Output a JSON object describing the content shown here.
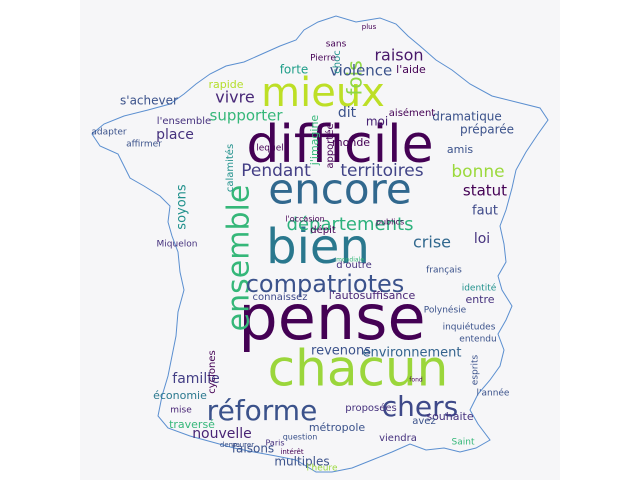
{
  "colors": {
    "background": "#ffffff",
    "panel": "#f6f6f8",
    "outline": "#5b8fd0",
    "palette": [
      "#440154",
      "#3b528b",
      "#21918c",
      "#5ec962",
      "#9bd63b",
      "#c8e020"
    ]
  },
  "words": [
    {
      "text": "pense",
      "color": "#440154"
    },
    {
      "text": "difficile",
      "color": "#440154"
    },
    {
      "text": "chacun",
      "color": "#9bd63b"
    },
    {
      "text": "bien",
      "color": "#2a788e"
    },
    {
      "text": "encore",
      "color": "#31688e"
    },
    {
      "text": "mieux",
      "color": "#bddf26"
    },
    {
      "text": "ensemble",
      "color": "#35b779"
    },
    {
      "text": "réforme",
      "color": "#3b528b"
    },
    {
      "text": "chers",
      "color": "#3e4989"
    },
    {
      "text": "compatriotes",
      "color": "#3b528b"
    },
    {
      "text": "départements",
      "color": "#2db27d"
    },
    {
      "text": "territoires",
      "color": "#414487"
    },
    {
      "text": "Pendant",
      "color": "#433e85"
    },
    {
      "text": "fois",
      "color": "#8fd744"
    },
    {
      "text": "raison",
      "color": "#48186a"
    },
    {
      "text": "violence",
      "color": "#3b528b"
    },
    {
      "text": "bonne",
      "color": "#9bd93c"
    },
    {
      "text": "crise",
      "color": "#31688e"
    },
    {
      "text": "vivre",
      "color": "#482878"
    },
    {
      "text": "supporter",
      "color": "#35b779"
    },
    {
      "text": "famille",
      "color": "#433e85"
    },
    {
      "text": "nouvelle",
      "color": "#482475"
    },
    {
      "text": "environnement",
      "color": "#33638d"
    },
    {
      "text": "revenons",
      "color": "#3b528b"
    },
    {
      "text": "statut",
      "color": "#440154"
    },
    {
      "text": "faut",
      "color": "#3e4989"
    },
    {
      "text": "loi",
      "color": "#46327e"
    },
    {
      "text": "dit",
      "color": "#3b528b"
    },
    {
      "text": "moi",
      "color": "#482475"
    },
    {
      "text": "place",
      "color": "#46327e"
    },
    {
      "text": "soyons",
      "color": "#21918c"
    },
    {
      "text": "s'achever",
      "color": "#3b528b"
    },
    {
      "text": "forte",
      "color": "#1f9e89"
    },
    {
      "text": "l'aide",
      "color": "#440154"
    },
    {
      "text": "choc",
      "color": "#21918c"
    },
    {
      "text": "rapide",
      "color": "#b5de2b"
    },
    {
      "text": "connaissez",
      "color": "#3e4989"
    },
    {
      "text": "l'autosuffisance",
      "color": "#482475"
    },
    {
      "text": "souhaite",
      "color": "#46327e"
    },
    {
      "text": "faisons",
      "color": "#3b528b"
    },
    {
      "text": "multiples",
      "color": "#3b528b"
    },
    {
      "text": "économie",
      "color": "#2a788e"
    },
    {
      "text": "traversé",
      "color": "#35b779"
    },
    {
      "text": "cyclones",
      "color": "#440154"
    },
    {
      "text": "métropole",
      "color": "#3b528b"
    },
    {
      "text": "viendra",
      "color": "#46327e"
    },
    {
      "text": "proposées",
      "color": "#46327e"
    },
    {
      "text": "l'heure",
      "color": "#9bd93c"
    },
    {
      "text": "dramatique",
      "color": "#3b528b"
    },
    {
      "text": "préparée",
      "color": "#3b528b"
    },
    {
      "text": "aisément",
      "color": "#440154"
    },
    {
      "text": "monde",
      "color": "#440154"
    },
    {
      "text": "amis",
      "color": "#3b528b"
    },
    {
      "text": "entre",
      "color": "#46327e"
    },
    {
      "text": "identité",
      "color": "#21918c"
    },
    {
      "text": "demeurer",
      "color": "#3b528b"
    },
    {
      "text": "Paris",
      "color": "#46327e"
    },
    {
      "text": "question",
      "color": "#3b528b"
    },
    {
      "text": "intérêt",
      "color": "#440154"
    },
    {
      "text": "mise",
      "color": "#482475"
    },
    {
      "text": "avez",
      "color": "#3b528b"
    },
    {
      "text": "Saint",
      "color": "#35b779"
    },
    {
      "text": "l'année",
      "color": "#3b528b"
    },
    {
      "text": "Polynésie",
      "color": "#3b528b"
    },
    {
      "text": "d'outre",
      "color": "#46327e"
    },
    {
      "text": "l'ensemble",
      "color": "#46327e"
    },
    {
      "text": "adapter",
      "color": "#3b528b"
    },
    {
      "text": "affirmer",
      "color": "#3b528b"
    },
    {
      "text": "Miquelon",
      "color": "#46327e"
    },
    {
      "text": "sans",
      "color": "#440154"
    },
    {
      "text": "Pierre",
      "color": "#440154"
    },
    {
      "text": "calamités",
      "color": "#21918c"
    },
    {
      "text": "apportée",
      "color": "#440154"
    },
    {
      "text": "j'imagine",
      "color": "#35b779"
    },
    {
      "text": "inquiétudes",
      "color": "#3b528b"
    },
    {
      "text": "lequel",
      "color": "#440154"
    },
    {
      "text": "dépit",
      "color": "#440154"
    },
    {
      "text": "l'occasion",
      "color": "#440154"
    },
    {
      "text": "publics",
      "color": "#440154"
    },
    {
      "text": "mondiale",
      "color": "#35b779"
    },
    {
      "text": "français",
      "color": "#3b528b"
    },
    {
      "text": "fond",
      "color": "#440154"
    },
    {
      "text": "plus",
      "color": "#440154"
    },
    {
      "text": "entendu",
      "color": "#3b528b"
    },
    {
      "text": "esprits",
      "color": "#3b528b"
    }
  ]
}
